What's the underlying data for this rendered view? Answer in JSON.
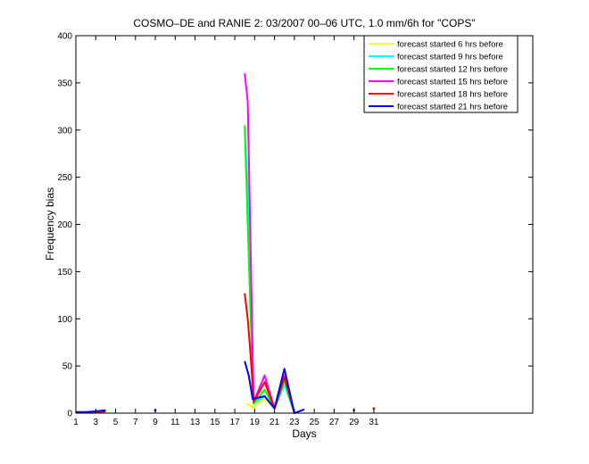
{
  "chart_data": {
    "type": "line",
    "title": "COSMO–DE and RANIE 2: 03/2007 00–06 UTC, 1.0 mm/6h for \"COPS\"",
    "xlabel": "Days",
    "ylabel": "Frequency bias",
    "xlim": [
      1,
      47
    ],
    "ylim": [
      0,
      400
    ],
    "xticks": [
      1,
      3,
      5,
      7,
      9,
      11,
      13,
      15,
      17,
      19,
      21,
      23,
      25,
      27,
      29,
      31
    ],
    "yticks": [
      0,
      50,
      100,
      150,
      200,
      250,
      300,
      350,
      400
    ],
    "grid": false,
    "legend_position": "top-right",
    "series": [
      {
        "name": "forecast started 6 hrs before",
        "color": "#ffff00",
        "segments": [
          [
            [
              18.2,
              10
            ],
            [
              18.6,
              8
            ],
            [
              18.9,
              5
            ],
            [
              19.2,
              10
            ],
            [
              20,
              15
            ],
            [
              21,
              5
            ],
            [
              22,
              30
            ],
            [
              23,
              0
            ]
          ]
        ]
      },
      {
        "name": "forecast started 9 hrs before",
        "color": "#00ffff",
        "segments": [
          [
            [
              1,
              1
            ],
            [
              2,
              1
            ],
            [
              3,
              1
            ],
            [
              4,
              1
            ]
          ],
          [
            [
              18,
              300
            ],
            [
              18.3,
              240
            ],
            [
              18.6,
              120
            ],
            [
              18.9,
              10
            ],
            [
              20,
              18
            ],
            [
              21,
              5
            ],
            [
              22,
              30
            ],
            [
              23,
              0
            ]
          ],
          [
            [
              29,
              3
            ]
          ]
        ]
      },
      {
        "name": "forecast started 12 hrs before",
        "color": "#00ff00",
        "segments": [
          [
            [
              1,
              1
            ],
            [
              2,
              1
            ],
            [
              3,
              1
            ],
            [
              4,
              2
            ]
          ],
          [
            [
              18,
              305
            ],
            [
              18.3,
              200
            ],
            [
              18.6,
              100
            ],
            [
              18.9,
              10
            ],
            [
              20,
              25
            ],
            [
              21,
              5
            ],
            [
              22,
              35
            ],
            [
              23,
              0
            ]
          ],
          [
            [
              29,
              4
            ]
          ]
        ]
      },
      {
        "name": "forecast started 15 hrs before",
        "color": "#ff00ff",
        "segments": [
          [
            [
              1,
              1
            ],
            [
              2,
              1
            ],
            [
              3,
              1
            ],
            [
              4,
              2
            ]
          ],
          [
            [
              18,
              360
            ],
            [
              18.3,
              330
            ],
            [
              18.6,
              170
            ],
            [
              18.9,
              12
            ],
            [
              20,
              40
            ],
            [
              21,
              5
            ],
            [
              22,
              40
            ],
            [
              23,
              0
            ]
          ],
          [
            [
              29,
              3
            ]
          ]
        ]
      },
      {
        "name": "forecast started 18 hrs before",
        "color": "#ff0000",
        "segments": [
          [
            [
              1,
              1
            ],
            [
              2,
              1
            ],
            [
              3,
              1
            ],
            [
              4,
              2
            ]
          ],
          [
            [
              18,
              127
            ],
            [
              18.3,
              100
            ],
            [
              18.6,
              60
            ],
            [
              18.9,
              12
            ],
            [
              20,
              33
            ],
            [
              21,
              5
            ],
            [
              22,
              38
            ],
            [
              23,
              0
            ]
          ],
          [
            [
              31,
              5
            ]
          ]
        ]
      },
      {
        "name": "forecast started 21 hrs before",
        "color": "#0000ff",
        "segments": [
          [
            [
              1,
              1
            ],
            [
              2,
              1
            ],
            [
              3,
              2
            ],
            [
              4,
              3
            ]
          ],
          [
            [
              9,
              3
            ]
          ],
          [
            [
              18,
              55
            ],
            [
              18.4,
              40
            ],
            [
              18.8,
              15
            ],
            [
              20,
              18
            ],
            [
              21,
              5
            ],
            [
              22,
              47
            ],
            [
              23,
              0
            ],
            [
              24,
              4
            ]
          ]
        ]
      }
    ]
  }
}
